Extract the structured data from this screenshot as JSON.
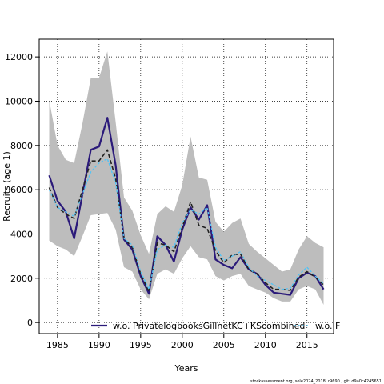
{
  "chart_data": {
    "type": "line",
    "xlabel": "Years",
    "ylabel": "Recruits (age 1)",
    "xlim": [
      1982.8,
      2018.2
    ],
    "ylim": [
      -500,
      12800
    ],
    "xticks": [
      1985,
      1990,
      1995,
      2000,
      2005,
      2010,
      2015
    ],
    "yticks": [
      0,
      2000,
      4000,
      6000,
      8000,
      10000,
      12000
    ],
    "grid": true,
    "legend_position": "bottom",
    "legend": [
      "w.o. PrivatelogbooksGillnetKC+KScombined",
      "w.o. F"
    ],
    "x": [
      1984,
      1985,
      1986,
      1987,
      1988,
      1989,
      1990,
      1991,
      1992,
      1993,
      1994,
      1995,
      1996,
      1997,
      1998,
      1999,
      2000,
      2001,
      2002,
      2003,
      2004,
      2005,
      2006,
      2007,
      2008,
      2009,
      2010,
      2011,
      2012,
      2013,
      2014,
      2015,
      2016,
      2017
    ],
    "series": [
      {
        "name": "w.o. PrivatelogbooksGillnetKC+KScombined",
        "color": "#2b1a7a",
        "style": "solid",
        "values": [
          6650,
          5500,
          5000,
          3800,
          5800,
          7800,
          7950,
          9250,
          7100,
          3750,
          3300,
          2100,
          1300,
          3900,
          3500,
          2750,
          4200,
          5200,
          4650,
          5300,
          2850,
          2600,
          2450,
          2950,
          2400,
          2200,
          1700,
          1350,
          1300,
          1250,
          2000,
          2250,
          2100,
          1500
        ]
      },
      {
        "name": "w.o. F",
        "color": "#4fc3f7",
        "style": "dashed",
        "values": [
          6000,
          5200,
          5000,
          4800,
          5800,
          6800,
          7200,
          7400,
          6300,
          3800,
          3500,
          2300,
          1500,
          3300,
          3500,
          3400,
          4500,
          5100,
          4900,
          5200,
          3400,
          2800,
          3000,
          3200,
          2500,
          2100,
          1900,
          1700,
          1500,
          1550,
          2150,
          2500,
          2100,
          1750
        ]
      },
      {
        "name": "",
        "color": "#222222",
        "style": "dashed",
        "values": [
          6100,
          5200,
          4900,
          4700,
          6000,
          7300,
          7300,
          7800,
          6500,
          3800,
          3400,
          2200,
          1400,
          3600,
          3500,
          3200,
          4300,
          5450,
          4400,
          4250,
          3250,
          2700,
          3050,
          3100,
          2400,
          2200,
          1800,
          1500,
          1500,
          1450,
          2050,
          2300,
          2050,
          1700
        ]
      }
    ],
    "band": {
      "color": "#bdbdbd",
      "upper": [
        10050,
        8000,
        7350,
        7200,
        9000,
        11050,
        11050,
        12250,
        9050,
        5650,
        5050,
        3950,
        3100,
        4900,
        5250,
        5000,
        6200,
        8400,
        6550,
        6450,
        4550,
        4100,
        4500,
        4700,
        3550,
        3200,
        2900,
        2600,
        2300,
        2400,
        3300,
        3900,
        3600,
        3400
      ],
      "lower": [
        3700,
        3450,
        3300,
        3000,
        3900,
        4850,
        4900,
        4950,
        4200,
        2500,
        2300,
        1500,
        1050,
        2200,
        2400,
        2200,
        2900,
        3450,
        2950,
        2850,
        2100,
        1900,
        2100,
        2200,
        1650,
        1500,
        1350,
        1100,
        950,
        950,
        1500,
        1650,
        1500,
        800
      ]
    }
  },
  "footer": "stockassessment.org, sole2024_2018, r9690 , git: d9a0c4245651"
}
